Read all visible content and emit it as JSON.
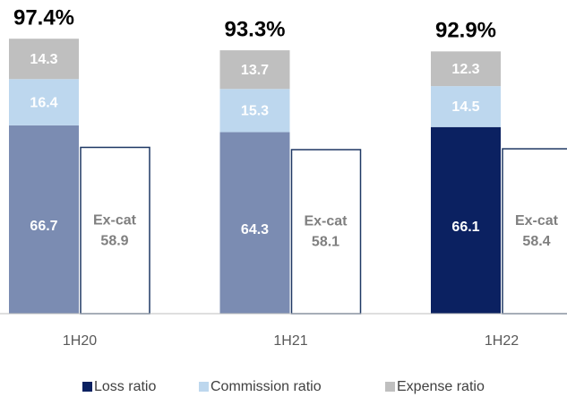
{
  "chart_data": {
    "type": "stacked-bar",
    "categories": [
      "1H20",
      "1H21",
      "1H22"
    ],
    "series": [
      {
        "name": "Loss ratio",
        "color": "#0b2161",
        "bar_colors": [
          "#7b8cb2",
          "#7b8cb2",
          "#0b2161"
        ],
        "values": [
          66.7,
          64.3,
          66.1
        ]
      },
      {
        "name": "Commission ratio",
        "color": "#bdd7ee",
        "values": [
          16.4,
          15.3,
          14.5
        ]
      },
      {
        "name": "Expense ratio",
        "color": "#bfbfbf",
        "values": [
          14.3,
          13.7,
          12.3
        ]
      }
    ],
    "totals": {
      "values": [
        97.4,
        93.3,
        92.9
      ],
      "value_labels": [
        "97.4%",
        "93.3%",
        "92.9%"
      ]
    },
    "ex_cat": {
      "name": "Ex-cat",
      "color": "#1f3864",
      "values": [
        58.9,
        58.1,
        58.4
      ]
    }
  }
}
